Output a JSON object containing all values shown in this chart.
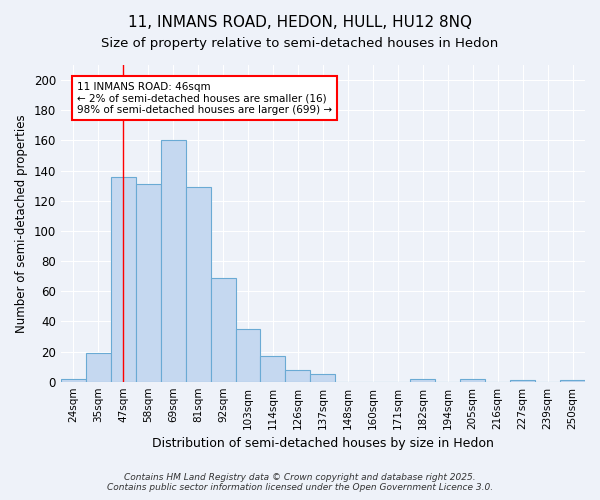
{
  "title_line1": "11, INMANS ROAD, HEDON, HULL, HU12 8NQ",
  "title_line2": "Size of property relative to semi-detached houses in Hedon",
  "xlabel": "Distribution of semi-detached houses by size in Hedon",
  "ylabel": "Number of semi-detached properties",
  "categories": [
    "24sqm",
    "35sqm",
    "47sqm",
    "58sqm",
    "69sqm",
    "81sqm",
    "92sqm",
    "103sqm",
    "114sqm",
    "126sqm",
    "137sqm",
    "148sqm",
    "160sqm",
    "171sqm",
    "182sqm",
    "194sqm",
    "205sqm",
    "216sqm",
    "227sqm",
    "239sqm",
    "250sqm"
  ],
  "values": [
    2,
    19,
    136,
    131,
    160,
    129,
    69,
    35,
    17,
    8,
    5,
    0,
    0,
    0,
    2,
    0,
    2,
    0,
    1,
    0,
    1
  ],
  "bar_color": "#c5d8f0",
  "bar_edge_color": "#6aaad4",
  "vline_x_index": 2,
  "annotation_box_text": "11 INMANS ROAD: 46sqm\n← 2% of semi-detached houses are smaller (16)\n98% of semi-detached houses are larger (699) →",
  "ylim": [
    0,
    210
  ],
  "yticks": [
    0,
    20,
    40,
    60,
    80,
    100,
    120,
    140,
    160,
    180,
    200
  ],
  "background_color": "#eef2f9",
  "grid_color": "#ffffff",
  "footer_line1": "Contains HM Land Registry data © Crown copyright and database right 2025.",
  "footer_line2": "Contains public sector information licensed under the Open Government Licence 3.0."
}
